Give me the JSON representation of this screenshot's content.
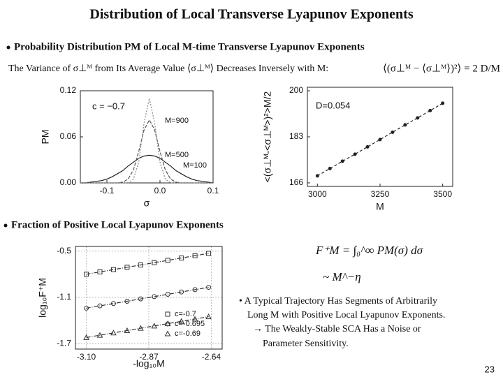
{
  "slide": {
    "title": "Distribution of Local Transverse Lyapunov Exponents",
    "bullet_1": "Probability Distribution PM of Local M-time Transverse Lyapunov Exponents",
    "variance_text": "The Variance of σ⊥ᴹ from Its Average Value ⟨σ⊥ᴹ⟩ Decreases Inversely with M:",
    "variance_formula": "⟨(σ⊥ᴹ − ⟨σ⊥ᴹ⟩)²⟩ = 2 D/M",
    "bullet_2": "Fraction of Positive Local Lyapunov Exponents",
    "formula_1": "F⁺M = ∫₀^∞ PM(σ) dσ",
    "formula_2": "~ M^−η",
    "notes": [
      "• A Typical Trajectory Has Segments of Arbitrarily",
      "Long M with Positive Local Lyapunov Exponents.",
      "→ The Weakly-Stable SCA Has a Noise or",
      "Parameter Sensitivity."
    ],
    "page_number": "23"
  },
  "chart_data": [
    {
      "type": "line",
      "x_label": "σ",
      "y_label": "PM",
      "annotation": "c = −0.7",
      "x": [
        -0.15,
        -0.14,
        -0.13,
        -0.12,
        -0.11,
        -0.1,
        -0.09,
        -0.08,
        -0.07,
        -0.06,
        -0.05,
        -0.04,
        -0.03,
        -0.02,
        -0.01,
        0,
        0.01,
        0.02,
        0.03,
        0.04,
        0.05,
        0.06,
        0.07,
        0.08,
        0.09,
        0.1
      ],
      "series": [
        {
          "name": "M=100",
          "color": "#222222",
          "values": [
            0,
            0,
            0.001,
            0.002,
            0.003,
            0.005,
            0.008,
            0.012,
            0.016,
            0.022,
            0.027,
            0.032,
            0.035,
            0.036,
            0.035,
            0.032,
            0.027,
            0.022,
            0.016,
            0.012,
            0.008,
            0.005,
            0.003,
            0.002,
            0.001,
            0
          ]
        },
        {
          "name": "M=500",
          "color": "#555555",
          "values": [
            0,
            0,
            0,
            0,
            0,
            0,
            0,
            0,
            0.001,
            0.005,
            0.017,
            0.041,
            0.069,
            0.082,
            0.069,
            0.041,
            0.017,
            0.005,
            0.001,
            0,
            0,
            0,
            0,
            0,
            0,
            0
          ]
        },
        {
          "name": "M=900",
          "color": "#888888",
          "values": [
            0,
            0,
            0,
            0,
            0,
            0,
            0,
            0,
            0,
            0,
            0.005,
            0.027,
            0.078,
            0.11,
            0.078,
            0.027,
            0.005,
            0,
            0,
            0,
            0,
            0,
            0,
            0,
            0,
            0
          ]
        }
      ],
      "xlim": [
        -0.15,
        0.1
      ],
      "xticks": [
        -0.1,
        {
          "value": 0,
          "label": "0.0"
        },
        0.1
      ],
      "ylim": [
        0,
        0.12
      ],
      "yticks": [
        {
          "value": 0,
          "label": "0.00"
        },
        0.06,
        0.12
      ]
    },
    {
      "type": "line",
      "x_label": "M",
      "y_label": "<(σ⊥ᴹ-<σ⊥ᴹ>)²>M/2",
      "annotation": "D=0.054",
      "markers": true,
      "x": [
        3000,
        3050,
        3100,
        3150,
        3200,
        3250,
        3300,
        3350,
        3400,
        3450,
        3500
      ],
      "series": [
        {
          "color": "#222222",
          "values": [
            168.6,
            171.3,
            174.0,
            176.6,
            179.3,
            182.0,
            184.7,
            187.4,
            190.0,
            192.7,
            195.4
          ]
        }
      ],
      "xlim": [
        2960,
        3540
      ],
      "xticks": [
        3000,
        3250,
        3500
      ],
      "ylim": [
        164.7,
        201.3
      ],
      "yticks": [
        166,
        183,
        200
      ]
    },
    {
      "type": "scatter",
      "x_label": "-log₁₀M",
      "y_label": "log₁₀F⁺M",
      "grid": true,
      "lines": true,
      "legend": "lower right",
      "x": [
        -3.1,
        -3.05,
        -3.0,
        -2.95,
        -2.9,
        -2.85,
        -2.8,
        -2.75,
        -2.7,
        -2.65
      ],
      "series": [
        {
          "name": "c=-0.7",
          "marker": "square",
          "color": "#333333",
          "values": [
            -0.8,
            -0.77,
            -0.74,
            -0.71,
            -0.68,
            -0.65,
            -0.62,
            -0.59,
            -0.56,
            -0.53
          ]
        },
        {
          "name": "c=-0.695",
          "marker": "circle",
          "color": "#333333",
          "values": [
            -1.24,
            -1.21,
            -1.18,
            -1.15,
            -1.12,
            -1.09,
            -1.06,
            -1.03,
            -1.0,
            -0.97
          ]
        },
        {
          "name": "c=-0.69",
          "marker": "triangle",
          "color": "#333333",
          "values": [
            -1.62,
            -1.59,
            -1.56,
            -1.53,
            -1.5,
            -1.47,
            -1.44,
            -1.41,
            -1.38,
            -1.35
          ]
        }
      ],
      "xlim": [
        -3.14,
        -2.6
      ],
      "xticks": [
        {
          "value": -3.1,
          "label": "-3.10"
        },
        -2.87,
        -2.64
      ],
      "ylim": [
        -1.77,
        -0.44
      ],
      "yticks": [
        -0.5,
        -1.1,
        -1.7
      ]
    }
  ]
}
